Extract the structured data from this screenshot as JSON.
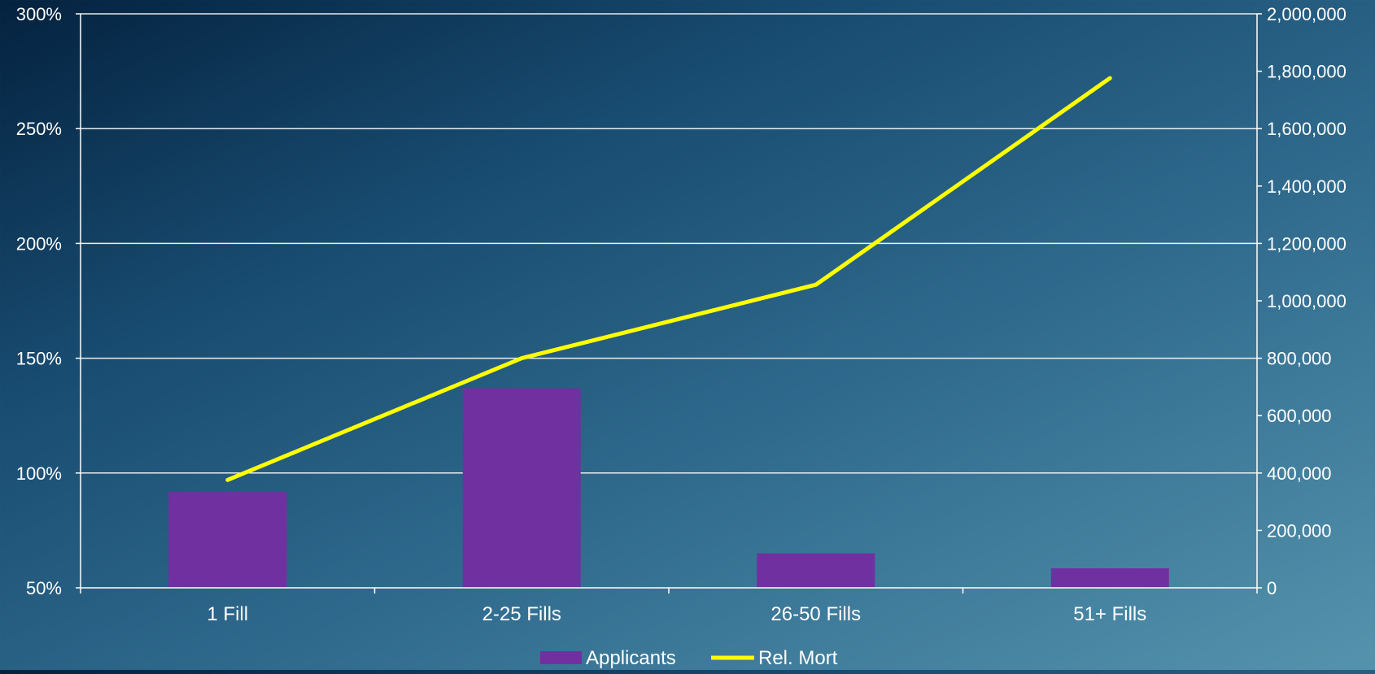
{
  "chart_data": {
    "type": "bar",
    "categories": [
      "1 Fill",
      "2-25 Fills",
      "26-50 Fills",
      "51+ Fills"
    ],
    "series": [
      {
        "name": "Applicants",
        "type": "bar",
        "axis": "right",
        "color": "#7030a0",
        "values": [
          335000,
          695000,
          120000,
          68000
        ]
      },
      {
        "name": "Rel. Mort",
        "type": "line",
        "axis": "left",
        "color": "#ffff00",
        "values": [
          0.97,
          1.5,
          1.82,
          2.72
        ]
      }
    ],
    "y_left": {
      "lim": [
        0.5,
        3.0
      ],
      "ticks": [
        0.5,
        1.0,
        1.5,
        2.0,
        2.5,
        3.0
      ],
      "tick_labels": [
        "50%",
        "100%",
        "150%",
        "200%",
        "250%",
        "300%"
      ]
    },
    "y_right": {
      "lim": [
        0,
        2000000
      ],
      "ticks": [
        0,
        200000,
        400000,
        600000,
        800000,
        1000000,
        1200000,
        1400000,
        1600000,
        1800000,
        2000000
      ],
      "tick_labels": [
        "0",
        "200,000",
        "400,000",
        "600,000",
        "800,000",
        "1,000,000",
        "1,200,000",
        "1,400,000",
        "1,600,000",
        "1,800,000",
        "2,000,000"
      ]
    },
    "grid": true,
    "legend": "bottom",
    "title": "",
    "xlabel": "",
    "ylabel": ""
  }
}
